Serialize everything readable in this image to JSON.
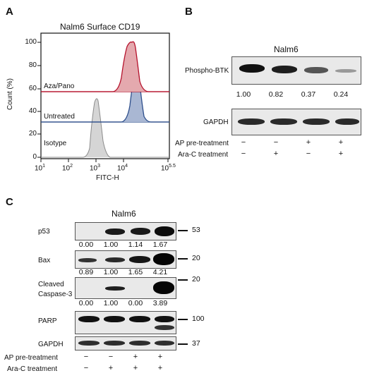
{
  "panel_a": {
    "letter": "A",
    "title": "Nalm6 Surface CD19",
    "ylabel": "Count (%)",
    "xlabel": "FITC-H",
    "y_ticks": [
      "100",
      "80",
      "60",
      "40",
      "20",
      "0"
    ],
    "x_ticks": [
      {
        "base": "10",
        "exp": "1"
      },
      {
        "base": "10",
        "exp": "2"
      },
      {
        "base": "10",
        "exp": "3"
      },
      {
        "base": "10",
        "exp": "4"
      },
      {
        "base": "10",
        "exp": "5.5"
      }
    ],
    "tracks": [
      "Aza/Pano",
      "Untreated",
      "Isotype"
    ],
    "colors": {
      "aza_pano": "#b5122c",
      "untreated": "#2e4f8c",
      "isotype": "#9a9a9a"
    }
  },
  "panel_b": {
    "letter": "B",
    "cell_line": "Nalm6",
    "row_labels": [
      "Phospho-BTK",
      "GAPDH"
    ],
    "quant": [
      "1.00",
      "0.82",
      "0.37",
      "0.24"
    ],
    "treatments": [
      {
        "label": "AP pre-treatment",
        "signs": [
          "−",
          "−",
          "+",
          "+"
        ]
      },
      {
        "label": "Ara-C treatment",
        "signs": [
          "−",
          "+",
          "−",
          "+"
        ]
      }
    ]
  },
  "panel_c": {
    "letter": "C",
    "cell_line": "Nalm6",
    "rows": [
      {
        "label": "p53",
        "quant": [
          "0.00",
          "1.00",
          "1.14",
          "1.67"
        ],
        "mw": "53"
      },
      {
        "label": "Bax",
        "quant": [
          "0.89",
          "1.00",
          "1.65",
          "4.21"
        ],
        "mw": "20"
      },
      {
        "label1": "Cleaved",
        "label2": "Caspase-3",
        "quant": [
          "0.00",
          "1.00",
          "0.00",
          "3.89"
        ],
        "mw": "20"
      },
      {
        "label": "PARP",
        "mw": "100"
      },
      {
        "label": "GAPDH",
        "mw": "37"
      }
    ],
    "treatments": [
      {
        "label": "AP pre-treatment",
        "signs": [
          "−",
          "−",
          "+",
          "+"
        ]
      },
      {
        "label": "Ara-C treatment",
        "signs": [
          "−",
          "+",
          "+",
          "+"
        ]
      }
    ]
  }
}
